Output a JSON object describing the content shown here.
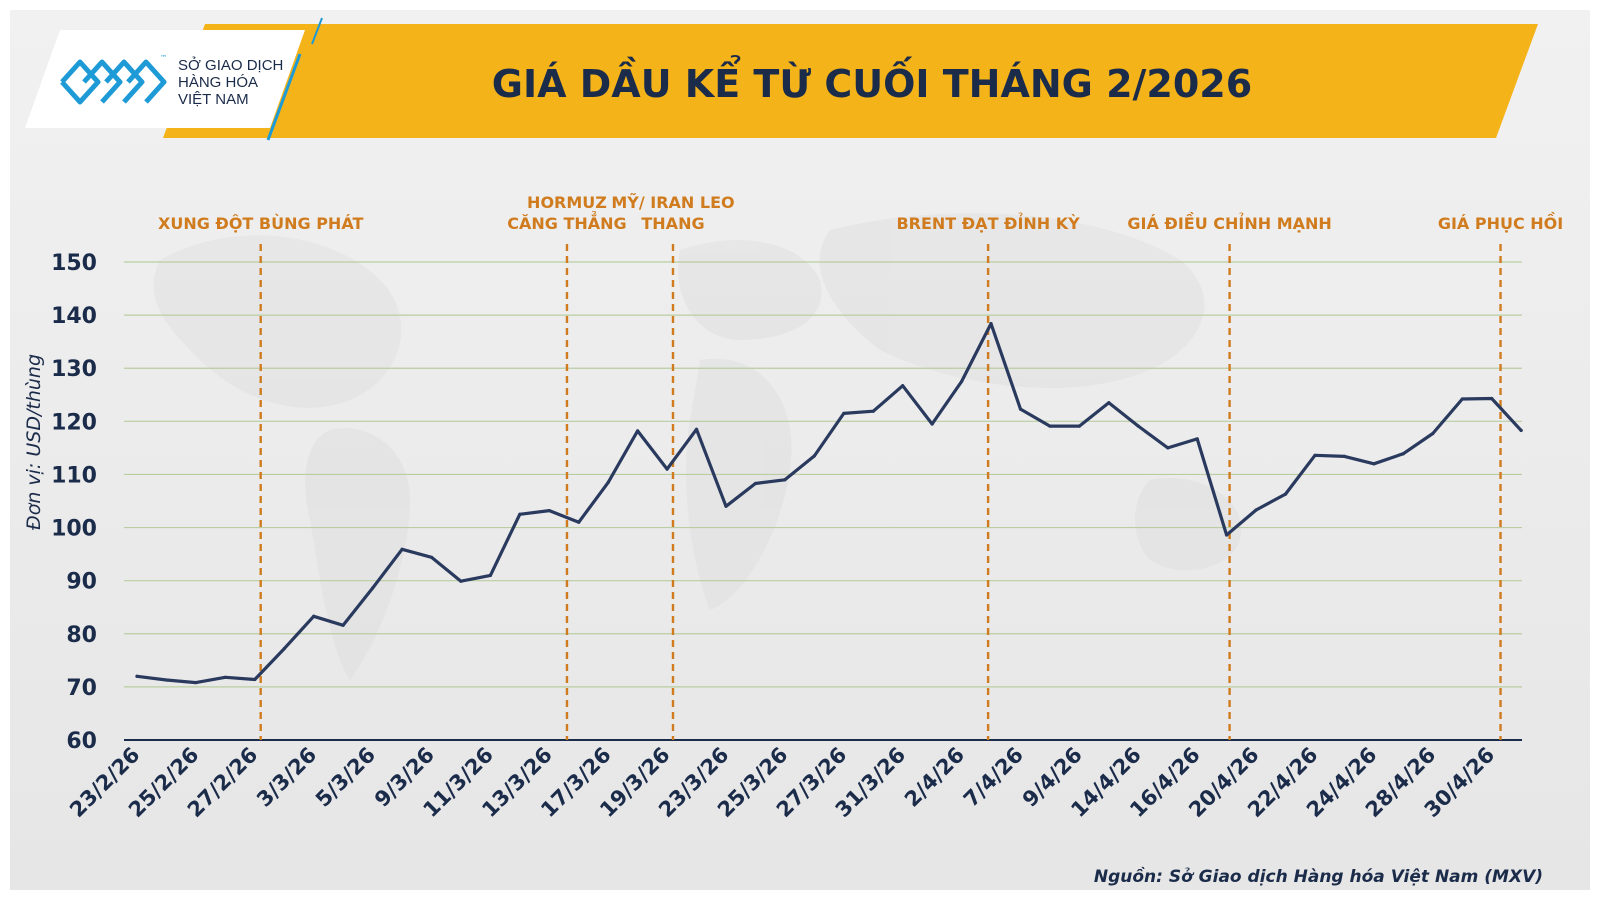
{
  "logo": {
    "line1": "SỞ GIAO DỊCH",
    "line2": "HÀNG HÓA",
    "line3": "VIỆT NAM",
    "tm": "™"
  },
  "colors": {
    "banner": "#F5B31A",
    "title": "#1B2B4A",
    "axis_text": "#1B2B4A",
    "line": "#2A3A5E",
    "event": "#D07C1E",
    "grid": "#B9CDA0",
    "logo_blue": "#1E9AD6"
  },
  "source": "Nguồn: Sở Giao dịch Hàng hóa Việt Nam (MXV)",
  "chart_data": {
    "type": "line",
    "title": "GIÁ DẦU KỂ TỪ CUỐI THÁNG 2/2026",
    "ylabel": "Đơn vị: USD/thùng",
    "xlabel": "",
    "ylim": [
      60,
      150
    ],
    "yticks": [
      60,
      70,
      80,
      90,
      100,
      110,
      120,
      130,
      140,
      150
    ],
    "grid": true,
    "x_labels": [
      "23/2/26",
      "25/2/26",
      "27/2/26",
      "3/3/26",
      "5/3/26",
      "9/3/26",
      "11/3/26",
      "13/3/26",
      "17/3/26",
      "19/3/26",
      "23/3/26",
      "25/3/26",
      "27/3/26",
      "31/3/26",
      "2/4/26",
      "7/4/26",
      "9/4/26",
      "14/4/26",
      "16/4/26",
      "20/4/26",
      "22/4/26",
      "24/4/26",
      "28/4/26",
      "30/4/26"
    ],
    "series": [
      {
        "values": [
          72.0,
          71.3,
          70.8,
          71.8,
          71.4,
          77.2,
          83.3,
          81.6,
          88.6,
          95.9,
          94.4,
          89.9,
          91.0,
          102.5,
          103.2,
          101.0,
          108.5,
          118.2,
          111.0,
          118.5,
          104.0,
          108.3,
          109.0,
          113.5,
          121.5,
          121.9,
          126.7,
          119.5,
          127.5,
          138.4,
          122.3,
          119.1,
          119.1,
          123.5,
          119.1,
          115.0,
          116.7,
          98.6,
          103.3,
          106.3,
          113.6,
          113.4,
          112.0,
          113.9,
          117.7,
          124.2,
          124.3,
          118.3
        ]
      }
    ],
    "events": [
      {
        "label": [
          "XUNG ĐỘT BÙNG PHÁT"
        ],
        "index": 4.2
      },
      {
        "label": [
          "HORMUZ",
          "CĂNG THẲNG"
        ],
        "index": 14.6
      },
      {
        "label": [
          "MỸ/ IRAN LEO",
          "THANG"
        ],
        "index": 18.2
      },
      {
        "label": [
          "BRENT ĐẠT ĐỈNH KỲ"
        ],
        "index": 28.9
      },
      {
        "label": [
          "GIÁ ĐIỀU CHỈNH MẠNH"
        ],
        "index": 37.1
      },
      {
        "label": [
          "GIÁ PHỤC HỒI"
        ],
        "index": 46.3
      }
    ]
  }
}
